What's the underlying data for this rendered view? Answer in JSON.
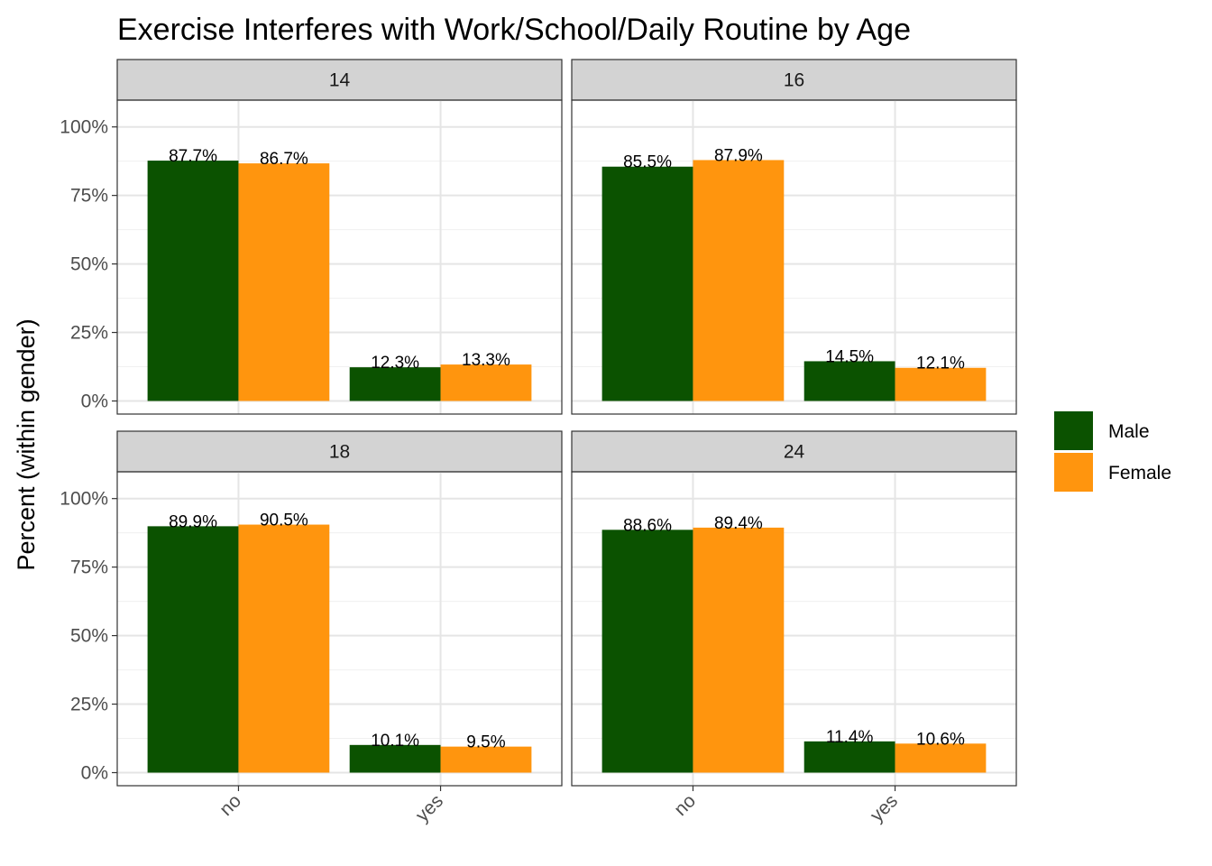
{
  "chart_data": {
    "type": "bar",
    "title": "Exercise Interferes with Work/School/Daily Routine by Age",
    "xlabel": "",
    "ylabel": "Percent (within gender)",
    "ylim": [
      0,
      1.05
    ],
    "y_ticks": [
      0,
      0.25,
      0.5,
      0.75,
      1.0
    ],
    "y_tick_labels": [
      "0%",
      "25%",
      "50%",
      "75%",
      "100%"
    ],
    "categories": [
      "no",
      "yes"
    ],
    "series_names": [
      "Male",
      "Female"
    ],
    "colors": {
      "Male": "#0b5200",
      "Female": "#ff950e"
    },
    "grid": true,
    "legend_position": "right",
    "facets": [
      {
        "label": "14",
        "series": [
          {
            "name": "Male",
            "values": [
              0.877,
              0.123
            ],
            "labels": [
              "87.7%",
              "12.3%"
            ]
          },
          {
            "name": "Female",
            "values": [
              0.867,
              0.133
            ],
            "labels": [
              "86.7%",
              "13.3%"
            ]
          }
        ]
      },
      {
        "label": "16",
        "series": [
          {
            "name": "Male",
            "values": [
              0.855,
              0.145
            ],
            "labels": [
              "85.5%",
              "14.5%"
            ]
          },
          {
            "name": "Female",
            "values": [
              0.879,
              0.121
            ],
            "labels": [
              "87.9%",
              "12.1%"
            ]
          }
        ]
      },
      {
        "label": "18",
        "series": [
          {
            "name": "Male",
            "values": [
              0.899,
              0.101
            ],
            "labels": [
              "89.9%",
              "10.1%"
            ]
          },
          {
            "name": "Female",
            "values": [
              0.905,
              0.095
            ],
            "labels": [
              "90.5%",
              "9.5%"
            ]
          }
        ]
      },
      {
        "label": "24",
        "series": [
          {
            "name": "Male",
            "values": [
              0.886,
              0.114
            ],
            "labels": [
              "88.6%",
              "11.4%"
            ]
          },
          {
            "name": "Female",
            "values": [
              0.894,
              0.106
            ],
            "labels": [
              "89.4%",
              "10.6%"
            ]
          }
        ]
      }
    ]
  }
}
